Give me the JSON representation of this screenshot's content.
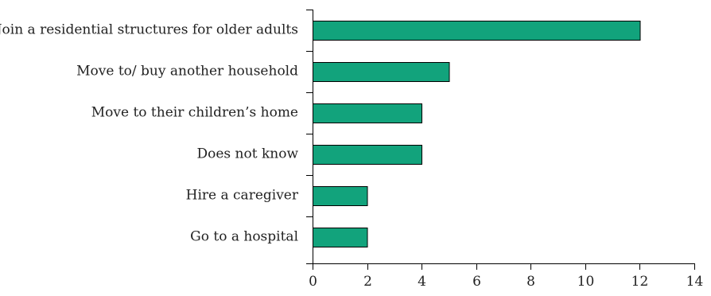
{
  "chart_data": {
    "type": "bar",
    "orientation": "horizontal",
    "categories": [
      "Join a residential structures for older adults",
      "Move to/ buy another household",
      "Move to their children’s home",
      "Does not know",
      "Hire a caregiver",
      "Go to a hospital"
    ],
    "values": [
      12,
      5,
      4,
      4,
      2,
      2
    ],
    "xlim": [
      0,
      14
    ],
    "xticks": [
      0,
      2,
      4,
      6,
      8,
      10,
      12,
      14
    ],
    "title": "",
    "xlabel": "",
    "ylabel": "",
    "bar_color": "#12a37c",
    "grid": false,
    "legend": "none"
  }
}
